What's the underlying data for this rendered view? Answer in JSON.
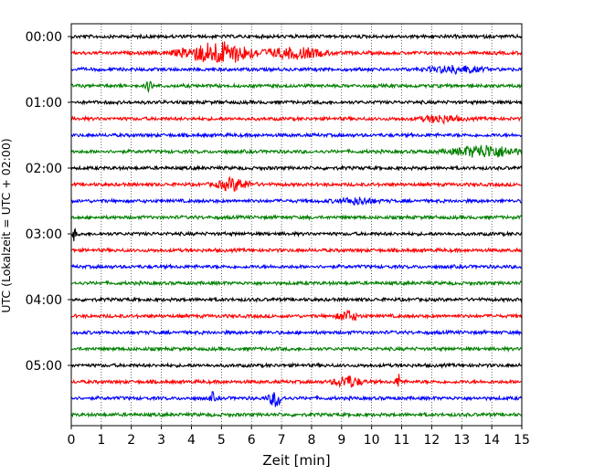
{
  "chart_data": {
    "type": "line",
    "title": "",
    "xlabel": "Zeit  [min]",
    "ylabel": "UTC (Lokalzeit = UTC + 02:00)",
    "xlim": [
      0,
      15
    ],
    "x_ticks": [
      "0",
      "1",
      "2",
      "3",
      "4",
      "5",
      "6",
      "7",
      "8",
      "9",
      "10",
      "11",
      "12",
      "13",
      "14",
      "15"
    ],
    "y_tick_labels": [
      "00:00",
      "01:00",
      "02:00",
      "03:00",
      "04:00",
      "05:00"
    ],
    "grid": {
      "x": "dotted vertical lines at each minute",
      "y": false
    },
    "trace_colors": [
      "#000000",
      "#ff0000",
      "#0000ff",
      "#008000"
    ],
    "rows": [
      {
        "start": "00:00",
        "color": "#000000",
        "bursts": []
      },
      {
        "start": "00:15",
        "color": "#ff0000",
        "bursts": [
          {
            "at": 4.9,
            "width": 1.1,
            "amp": 2.6
          },
          {
            "at": 7.5,
            "width": 0.9,
            "amp": 1.2
          }
        ]
      },
      {
        "start": "00:30",
        "color": "#0000ff",
        "bursts": [
          {
            "at": 12.8,
            "width": 0.8,
            "amp": 0.8
          }
        ]
      },
      {
        "start": "00:45",
        "color": "#008000",
        "bursts": [
          {
            "at": 2.6,
            "width": 0.1,
            "amp": 1.2
          }
        ]
      },
      {
        "start": "01:00",
        "color": "#000000",
        "bursts": []
      },
      {
        "start": "01:15",
        "color": "#ff0000",
        "bursts": [
          {
            "at": 12.3,
            "width": 0.6,
            "amp": 0.8
          }
        ]
      },
      {
        "start": "01:30",
        "color": "#0000ff",
        "bursts": []
      },
      {
        "start": "01:45",
        "color": "#008000",
        "bursts": [
          {
            "at": 13.8,
            "width": 1.0,
            "amp": 1.4
          }
        ]
      },
      {
        "start": "02:00",
        "color": "#000000",
        "bursts": []
      },
      {
        "start": "02:15",
        "color": "#ff0000",
        "bursts": [
          {
            "at": 5.4,
            "width": 0.5,
            "amp": 1.4
          }
        ]
      },
      {
        "start": "02:30",
        "color": "#0000ff",
        "bursts": [
          {
            "at": 9.5,
            "width": 0.6,
            "amp": 0.7
          }
        ]
      },
      {
        "start": "02:45",
        "color": "#008000",
        "bursts": []
      },
      {
        "start": "03:00",
        "color": "#000000",
        "bursts": [
          {
            "at": 0.1,
            "width": 0.05,
            "amp": 1.8
          }
        ]
      },
      {
        "start": "03:15",
        "color": "#ff0000",
        "bursts": []
      },
      {
        "start": "03:30",
        "color": "#0000ff",
        "bursts": []
      },
      {
        "start": "03:45",
        "color": "#008000",
        "bursts": []
      },
      {
        "start": "04:00",
        "color": "#000000",
        "bursts": []
      },
      {
        "start": "04:15",
        "color": "#ff0000",
        "bursts": [
          {
            "at": 9.2,
            "width": 0.3,
            "amp": 1.2
          }
        ]
      },
      {
        "start": "04:30",
        "color": "#0000ff",
        "bursts": []
      },
      {
        "start": "04:45",
        "color": "#008000",
        "bursts": []
      },
      {
        "start": "05:00",
        "color": "#000000",
        "bursts": []
      },
      {
        "start": "05:15",
        "color": "#ff0000",
        "bursts": [
          {
            "at": 9.2,
            "width": 0.4,
            "amp": 1.4
          },
          {
            "at": 10.9,
            "width": 0.08,
            "amp": 1.8
          }
        ]
      },
      {
        "start": "05:30",
        "color": "#0000ff",
        "bursts": [
          {
            "at": 6.8,
            "width": 0.2,
            "amp": 2.0
          },
          {
            "at": 4.7,
            "width": 0.08,
            "amp": 1.2
          }
        ]
      },
      {
        "start": "05:45",
        "color": "#008000",
        "bursts": []
      }
    ]
  }
}
